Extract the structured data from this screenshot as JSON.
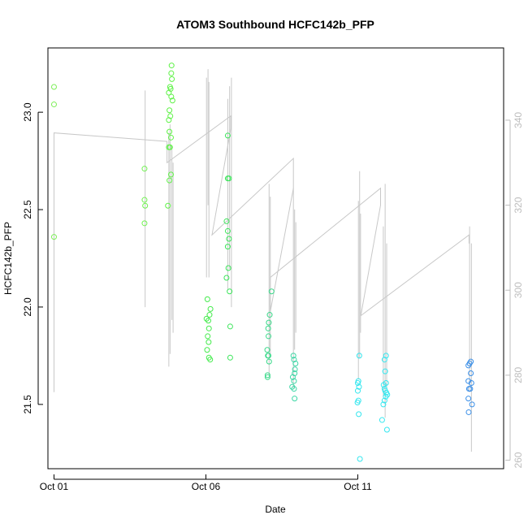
{
  "chart_data": {
    "type": "scatter",
    "title": "ATOM3 Southbound HCFC142b_PFP",
    "xlabel": "Date",
    "ylabel": "HCFC142b_PFP",
    "xlim": [
      -0.2,
      14.8
    ],
    "ylim": [
      21.17,
      23.33
    ],
    "y2lim": [
      258,
      357
    ],
    "x_ticks": [
      0,
      5,
      10
    ],
    "x_tick_labels": [
      "Oct 01",
      "Oct 06",
      "Oct 11"
    ],
    "y_ticks": [
      21.5,
      22.0,
      22.5,
      23.0
    ],
    "y_tick_labels": [
      "21.5",
      "22.0",
      "22.5",
      "23.0"
    ],
    "y2_ticks": [
      260,
      280,
      300,
      320,
      340
    ],
    "y2_tick_labels": [
      "260",
      "280",
      "300",
      "320",
      "340"
    ],
    "x_unit": "days since Oct 01",
    "points": [
      {
        "x": 0.0,
        "y": 23.13,
        "color": "#7dee58"
      },
      {
        "x": 0.0,
        "y": 23.04,
        "color": "#7dee58"
      },
      {
        "x": 0.0,
        "y": 22.36,
        "color": "#7dee58"
      },
      {
        "x": 2.98,
        "y": 22.71,
        "color": "#6ff24f"
      },
      {
        "x": 2.98,
        "y": 22.55,
        "color": "#6ff24f"
      },
      {
        "x": 3.0,
        "y": 22.52,
        "color": "#6ff24f"
      },
      {
        "x": 2.98,
        "y": 22.43,
        "color": "#6ff24f"
      },
      {
        "x": 3.75,
        "y": 22.52,
        "color": "#5ef246"
      },
      {
        "x": 3.8,
        "y": 22.65,
        "color": "#5ef246"
      },
      {
        "x": 3.85,
        "y": 22.68,
        "color": "#5ef246"
      },
      {
        "x": 3.78,
        "y": 22.82,
        "color": "#5ef246"
      },
      {
        "x": 3.82,
        "y": 22.82,
        "color": "#5ef246"
      },
      {
        "x": 3.85,
        "y": 22.87,
        "color": "#5ef246"
      },
      {
        "x": 3.8,
        "y": 22.9,
        "color": "#5ef246"
      },
      {
        "x": 3.78,
        "y": 22.96,
        "color": "#5ef246"
      },
      {
        "x": 3.83,
        "y": 22.98,
        "color": "#5ef246"
      },
      {
        "x": 3.8,
        "y": 23.01,
        "color": "#5ef246"
      },
      {
        "x": 3.9,
        "y": 23.06,
        "color": "#5ef246"
      },
      {
        "x": 3.86,
        "y": 23.08,
        "color": "#5ef246"
      },
      {
        "x": 3.78,
        "y": 23.1,
        "color": "#5ef246"
      },
      {
        "x": 3.84,
        "y": 23.12,
        "color": "#5ef246"
      },
      {
        "x": 3.82,
        "y": 23.13,
        "color": "#5ef246"
      },
      {
        "x": 3.88,
        "y": 23.17,
        "color": "#5ef246"
      },
      {
        "x": 3.86,
        "y": 23.2,
        "color": "#5ef246"
      },
      {
        "x": 3.87,
        "y": 23.24,
        "color": "#5ef246"
      },
      {
        "x": 5.05,
        "y": 22.04,
        "color": "#43eb4b"
      },
      {
        "x": 5.15,
        "y": 21.99,
        "color": "#43eb4b"
      },
      {
        "x": 5.12,
        "y": 21.96,
        "color": "#43eb4b"
      },
      {
        "x": 5.08,
        "y": 21.93,
        "color": "#43eb4b"
      },
      {
        "x": 5.02,
        "y": 21.94,
        "color": "#43eb4b"
      },
      {
        "x": 5.1,
        "y": 21.89,
        "color": "#43eb4b"
      },
      {
        "x": 5.06,
        "y": 21.85,
        "color": "#43eb4b"
      },
      {
        "x": 5.09,
        "y": 21.82,
        "color": "#43eb4b"
      },
      {
        "x": 5.04,
        "y": 21.78,
        "color": "#43eb4b"
      },
      {
        "x": 5.1,
        "y": 21.74,
        "color": "#43eb4b"
      },
      {
        "x": 5.14,
        "y": 21.73,
        "color": "#43eb4b"
      },
      {
        "x": 5.72,
        "y": 22.88,
        "color": "#3be55a"
      },
      {
        "x": 5.76,
        "y": 22.66,
        "color": "#3be55a"
      },
      {
        "x": 5.72,
        "y": 22.66,
        "color": "#3be55a"
      },
      {
        "x": 5.68,
        "y": 22.44,
        "color": "#3be55a"
      },
      {
        "x": 5.72,
        "y": 22.39,
        "color": "#3be55a"
      },
      {
        "x": 5.76,
        "y": 22.35,
        "color": "#3be55a"
      },
      {
        "x": 5.72,
        "y": 22.31,
        "color": "#3be55a"
      },
      {
        "x": 5.74,
        "y": 22.2,
        "color": "#3be55a"
      },
      {
        "x": 5.68,
        "y": 22.15,
        "color": "#3be55a"
      },
      {
        "x": 5.78,
        "y": 22.08,
        "color": "#3be55a"
      },
      {
        "x": 5.8,
        "y": 21.9,
        "color": "#3be55a"
      },
      {
        "x": 5.8,
        "y": 21.74,
        "color": "#3be55a"
      },
      {
        "x": 7.1,
        "y": 21.96,
        "color": "#3ad98a"
      },
      {
        "x": 7.07,
        "y": 21.92,
        "color": "#3ad98a"
      },
      {
        "x": 7.05,
        "y": 21.89,
        "color": "#3ad98a"
      },
      {
        "x": 7.06,
        "y": 21.85,
        "color": "#3ad98a"
      },
      {
        "x": 7.02,
        "y": 21.78,
        "color": "#3ad98a"
      },
      {
        "x": 7.06,
        "y": 21.75,
        "color": "#3ad98a"
      },
      {
        "x": 7.04,
        "y": 21.75,
        "color": "#3ad98a"
      },
      {
        "x": 7.08,
        "y": 21.72,
        "color": "#3ad98a"
      },
      {
        "x": 7.03,
        "y": 21.65,
        "color": "#3ad98a"
      },
      {
        "x": 7.03,
        "y": 21.64,
        "color": "#3ad98a"
      },
      {
        "x": 7.16,
        "y": 22.08,
        "color": "#3ad98a"
      },
      {
        "x": 7.88,
        "y": 21.75,
        "color": "#3cd7a5"
      },
      {
        "x": 7.9,
        "y": 21.73,
        "color": "#3cd7a5"
      },
      {
        "x": 7.95,
        "y": 21.71,
        "color": "#3cd7a5"
      },
      {
        "x": 7.93,
        "y": 21.68,
        "color": "#3cd7a5"
      },
      {
        "x": 7.92,
        "y": 21.66,
        "color": "#3cd7a5"
      },
      {
        "x": 7.86,
        "y": 21.64,
        "color": "#3cd7a5"
      },
      {
        "x": 7.9,
        "y": 21.62,
        "color": "#3cd7a5"
      },
      {
        "x": 7.84,
        "y": 21.59,
        "color": "#3cd7a5"
      },
      {
        "x": 7.9,
        "y": 21.58,
        "color": "#3cd7a5"
      },
      {
        "x": 7.92,
        "y": 21.53,
        "color": "#3cd7a5"
      },
      {
        "x": 10.05,
        "y": 21.75,
        "color": "#33e6ee"
      },
      {
        "x": 10.02,
        "y": 21.62,
        "color": "#33e6ee"
      },
      {
        "x": 10.0,
        "y": 21.61,
        "color": "#33e6ee"
      },
      {
        "x": 10.04,
        "y": 21.59,
        "color": "#33e6ee"
      },
      {
        "x": 10.0,
        "y": 21.57,
        "color": "#33e6ee"
      },
      {
        "x": 10.02,
        "y": 21.52,
        "color": "#33e6ee"
      },
      {
        "x": 9.99,
        "y": 21.51,
        "color": "#33e6ee"
      },
      {
        "x": 10.03,
        "y": 21.45,
        "color": "#33e6ee"
      },
      {
        "x": 10.07,
        "y": 21.22,
        "color": "#33e6ee"
      },
      {
        "x": 10.93,
        "y": 21.75,
        "color": "#34e8f0"
      },
      {
        "x": 10.88,
        "y": 21.73,
        "color": "#34e8f0"
      },
      {
        "x": 10.9,
        "y": 21.67,
        "color": "#34e8f0"
      },
      {
        "x": 10.93,
        "y": 21.61,
        "color": "#34e8f0"
      },
      {
        "x": 10.85,
        "y": 21.6,
        "color": "#34e8f0"
      },
      {
        "x": 10.88,
        "y": 21.58,
        "color": "#34e8f0"
      },
      {
        "x": 10.9,
        "y": 21.57,
        "color": "#34e8f0"
      },
      {
        "x": 10.94,
        "y": 21.56,
        "color": "#34e8f0"
      },
      {
        "x": 10.97,
        "y": 21.55,
        "color": "#34e8f0"
      },
      {
        "x": 10.92,
        "y": 21.54,
        "color": "#34e8f0"
      },
      {
        "x": 10.88,
        "y": 21.52,
        "color": "#34e8f0"
      },
      {
        "x": 10.84,
        "y": 21.5,
        "color": "#34e8f0"
      },
      {
        "x": 10.8,
        "y": 21.42,
        "color": "#34e8f0"
      },
      {
        "x": 10.96,
        "y": 21.37,
        "color": "#34e8f0"
      },
      {
        "x": 13.72,
        "y": 21.72,
        "color": "#3a8fe8"
      },
      {
        "x": 13.68,
        "y": 21.71,
        "color": "#3a8fe8"
      },
      {
        "x": 13.64,
        "y": 21.7,
        "color": "#3a8fe8"
      },
      {
        "x": 13.72,
        "y": 21.66,
        "color": "#3a8fe8"
      },
      {
        "x": 13.64,
        "y": 21.62,
        "color": "#3a8fe8"
      },
      {
        "x": 13.74,
        "y": 21.61,
        "color": "#3a8fe8"
      },
      {
        "x": 13.66,
        "y": 21.58,
        "color": "#3a8fe8"
      },
      {
        "x": 13.7,
        "y": 21.58,
        "color": "#3a8fe8"
      },
      {
        "x": 13.64,
        "y": 21.53,
        "color": "#3a8fe8"
      },
      {
        "x": 13.76,
        "y": 21.5,
        "color": "#3a8fe8"
      },
      {
        "x": 13.65,
        "y": 21.46,
        "color": "#3a8fe8"
      }
    ],
    "line_series": {
      "color": "#c8c8c8",
      "axis": "right",
      "points": [
        [
          0.0,
          276
        ],
        [
          0.0,
          337
        ],
        [
          3.72,
          335
        ],
        [
          3.72,
          330
        ],
        [
          5.82,
          341
        ],
        [
          5.82,
          338
        ],
        [
          5.2,
          313
        ],
        [
          7.88,
          331
        ],
        [
          7.88,
          324
        ],
        [
          7.12,
          295
        ],
        [
          7.12,
          303
        ],
        [
          10.75,
          324
        ],
        [
          10.75,
          320
        ],
        [
          10.1,
          294
        ],
        [
          13.66,
          313
        ],
        [
          13.66,
          311
        ]
      ],
      "spikes": [
        {
          "x": 3.0,
          "ymin": 296,
          "ymax": 347
        },
        {
          "x": 3.78,
          "ymin": 282,
          "ymax": 337
        },
        {
          "x": 3.82,
          "ymin": 285,
          "ymax": 339
        },
        {
          "x": 3.88,
          "ymin": 293,
          "ymax": 334
        },
        {
          "x": 3.92,
          "ymin": 290,
          "ymax": 330
        },
        {
          "x": 5.02,
          "ymin": 303,
          "ymax": 350
        },
        {
          "x": 5.07,
          "ymin": 320,
          "ymax": 352
        },
        {
          "x": 5.1,
          "ymin": 303,
          "ymax": 349
        },
        {
          "x": 5.72,
          "ymin": 300,
          "ymax": 345
        },
        {
          "x": 5.78,
          "ymin": 305,
          "ymax": 348
        },
        {
          "x": 5.84,
          "ymin": 296,
          "ymax": 350
        },
        {
          "x": 7.08,
          "ymin": 280,
          "ymax": 325
        },
        {
          "x": 7.12,
          "ymin": 285,
          "ymax": 322
        },
        {
          "x": 7.88,
          "ymin": 277,
          "ymax": 324
        },
        {
          "x": 7.92,
          "ymin": 286,
          "ymax": 319
        },
        {
          "x": 7.96,
          "ymin": 290,
          "ymax": 316
        },
        {
          "x": 10.02,
          "ymin": 279,
          "ymax": 321
        },
        {
          "x": 10.06,
          "ymin": 284,
          "ymax": 328
        },
        {
          "x": 10.09,
          "ymin": 290,
          "ymax": 318
        },
        {
          "x": 10.84,
          "ymin": 275,
          "ymax": 315
        },
        {
          "x": 10.9,
          "ymin": 270,
          "ymax": 325
        },
        {
          "x": 10.95,
          "ymin": 277,
          "ymax": 311
        },
        {
          "x": 13.68,
          "ymin": 276,
          "ymax": 315
        },
        {
          "x": 13.74,
          "ymin": 262,
          "ymax": 311
        }
      ]
    }
  }
}
